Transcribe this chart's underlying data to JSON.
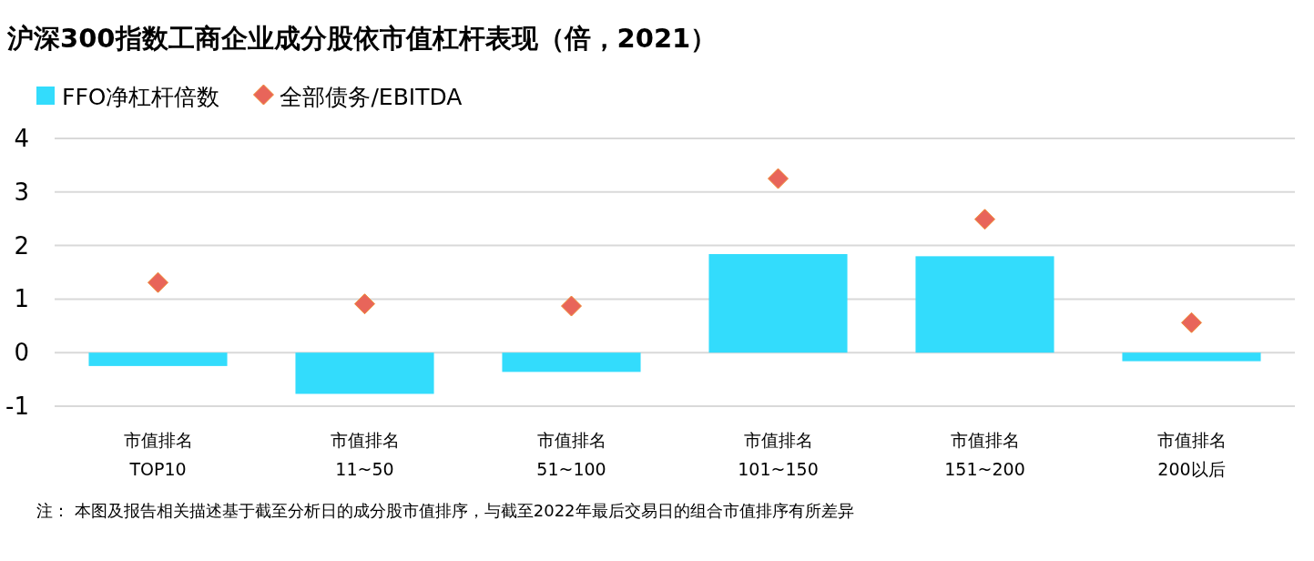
{
  "chart_data": {
    "type": "bar",
    "title": "沪深300指数工商企业成分股依市值杠杆表现（倍，2021）",
    "categories": [
      "市值排名\nTOP10",
      "市值排名\n11~50",
      "市值排名\n51~100",
      "市值排名\n101~150",
      "市值排名\n151~200",
      "市值排名\n200以后"
    ],
    "series": [
      {
        "name": "FFO净杠杆倍数",
        "color": "#33dcfc",
        "values": [
          -0.25,
          -0.77,
          -0.36,
          1.84,
          1.8,
          -0.16
        ]
      },
      {
        "name": "全部债务/EBITDA",
        "type": "scatter",
        "marker": "diamond",
        "color": "#e8655a",
        "values": [
          1.31,
          0.91,
          0.87,
          3.25,
          2.49,
          0.56
        ]
      }
    ],
    "ylim": [
      -1,
      4
    ],
    "yticks": [
      -1,
      0,
      1,
      2,
      3,
      4
    ],
    "grid": "y",
    "legend": "top left",
    "annotations": [
      "注： 本图及报告相关描述基于截至分析日的成分股市值排序，与截至2022年最后交易日的组合市值排序有所差异"
    ]
  }
}
